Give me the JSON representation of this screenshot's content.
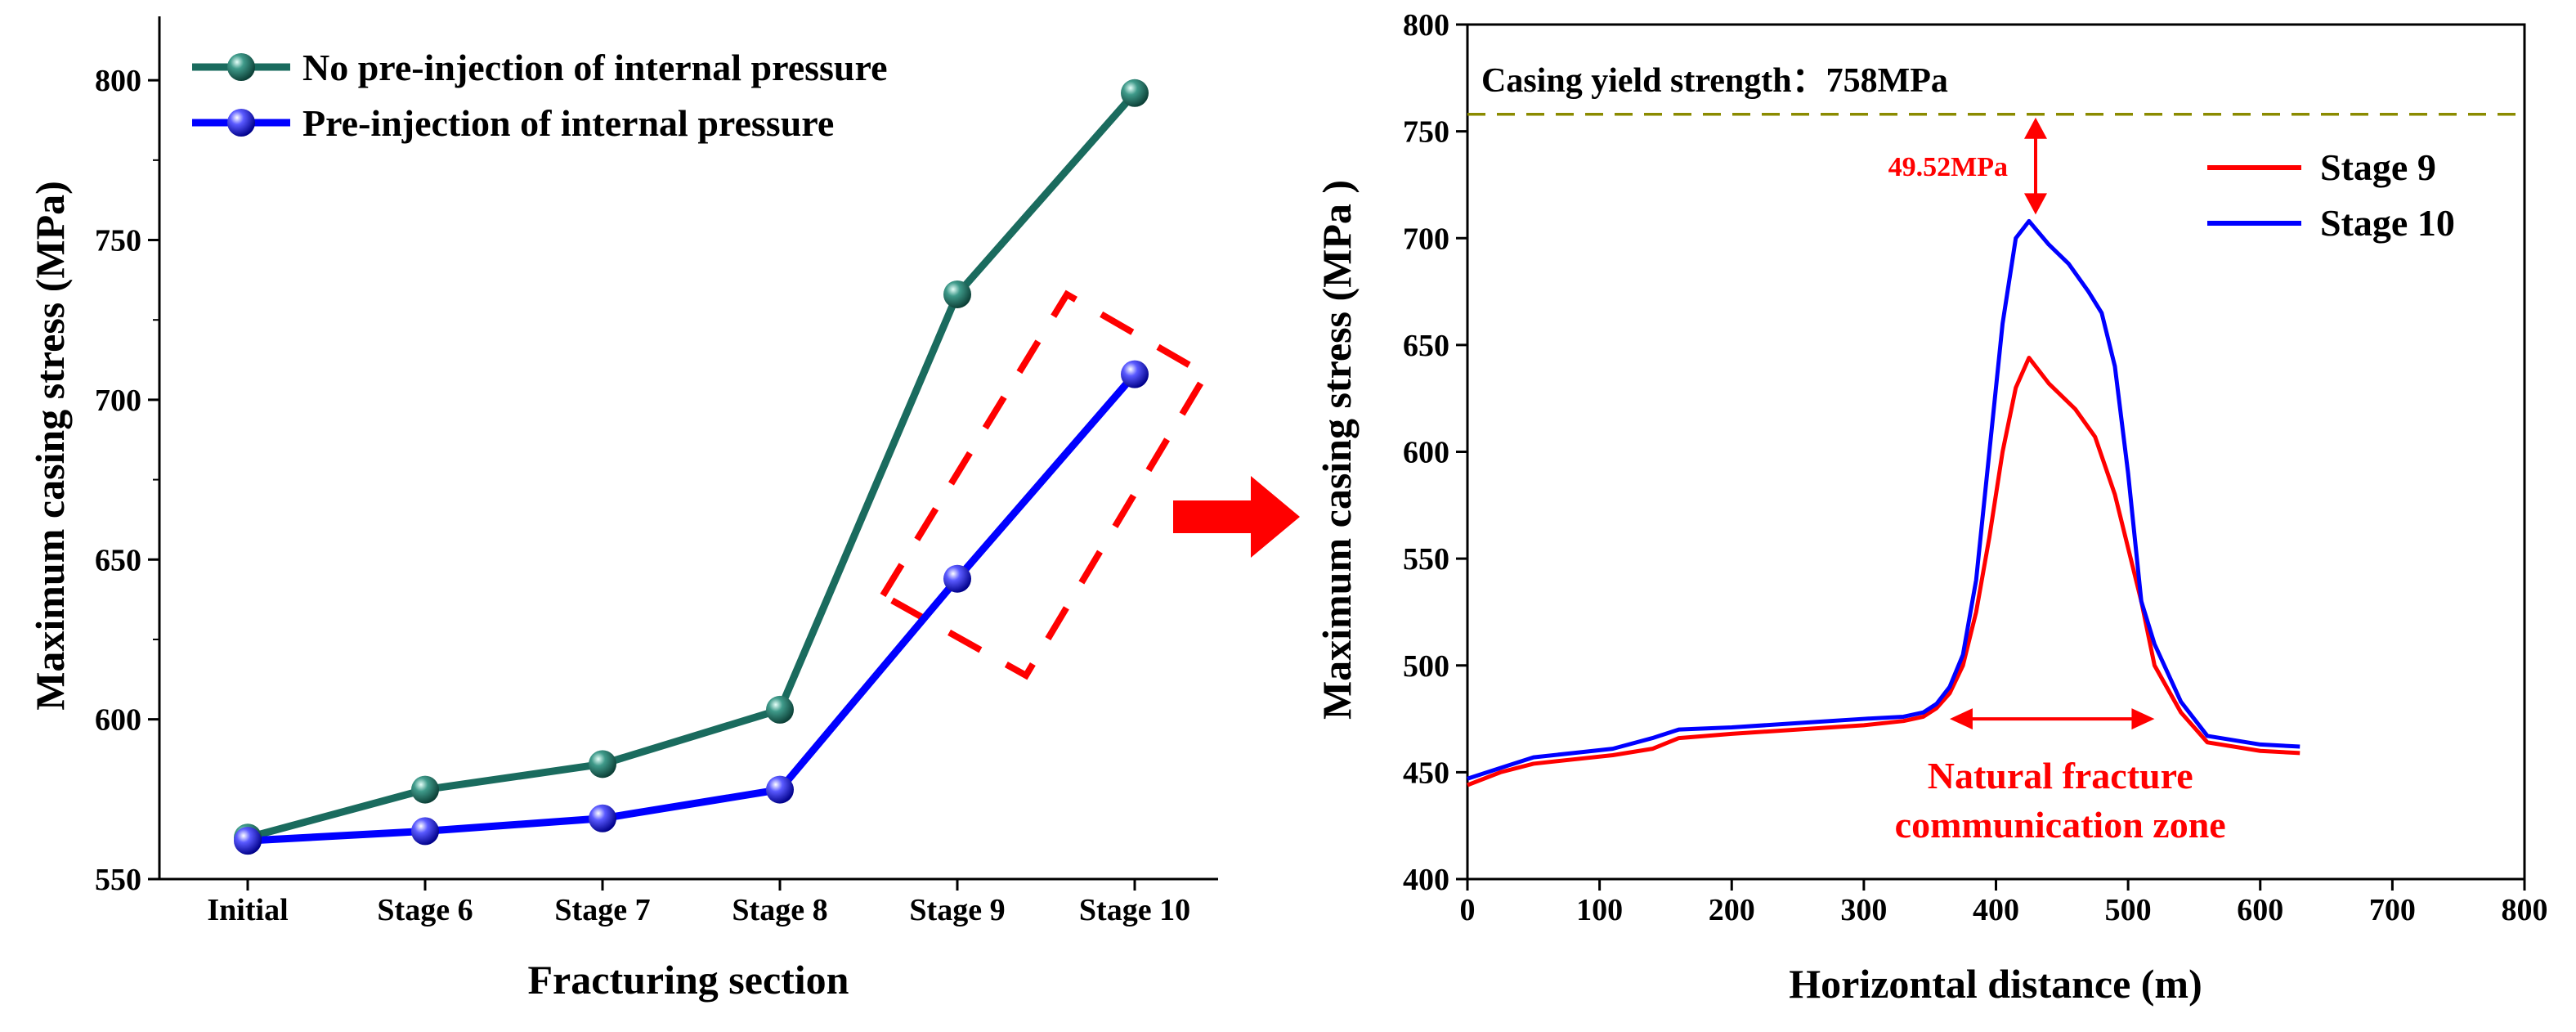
{
  "chart_data": [
    {
      "type": "line",
      "xlabel": "Fracturing section",
      "ylabel": "Maximum casing stress (MPa)",
      "categories": [
        "Initial",
        "Stage 6",
        "Stage 7",
        "Stage 8",
        "Stage 9",
        "Stage 10"
      ],
      "ylim": [
        550,
        820
      ],
      "yticks": [
        550,
        600,
        650,
        700,
        750,
        800
      ],
      "series": [
        {
          "name": "No pre-injection of internal pressure",
          "color": "#1a6b5e",
          "values": [
            563,
            578,
            586,
            603,
            733,
            796
          ]
        },
        {
          "name": "Pre-injection of internal pressure",
          "color": "#0000ff",
          "values": [
            562,
            565,
            569,
            578,
            644,
            708
          ]
        }
      ],
      "legend": "top-left",
      "annotation": "dashed red box highlighting Stage 9 and Stage 10"
    },
    {
      "type": "line",
      "xlabel": "Horizontal distance (m)",
      "ylabel": "Maximum casing stress (MPa )",
      "xlim": [
        0,
        800
      ],
      "ylim": [
        400,
        800
      ],
      "xticks": [
        0,
        100,
        200,
        300,
        400,
        500,
        600,
        700,
        800
      ],
      "yticks": [
        400,
        450,
        500,
        550,
        600,
        650,
        700,
        750,
        800
      ],
      "reference_line": {
        "value": 758,
        "label": "Casing yield strength：758MPa",
        "color": "#8b8b00"
      },
      "gap_annotation": {
        "label": "49.52MPa",
        "from": 708,
        "to": 758,
        "x": 430
      },
      "zone_annotation": {
        "line1": "Natural fracture",
        "line2": "communication zone",
        "x_start": 365,
        "x_end": 520,
        "y": 475
      },
      "series": [
        {
          "name": "Stage 9",
          "color": "#ff0000",
          "x": [
            0,
            25,
            50,
            80,
            110,
            140,
            160,
            200,
            250,
            300,
            330,
            345,
            355,
            365,
            375,
            385,
            395,
            405,
            415,
            425,
            440,
            460,
            475,
            490,
            500,
            510,
            520,
            540,
            560,
            600,
            630
          ],
          "y": [
            444,
            450,
            454,
            456,
            458,
            461,
            466,
            468,
            470,
            472,
            474,
            476,
            480,
            487,
            500,
            525,
            560,
            600,
            630,
            644,
            632,
            620,
            607,
            580,
            555,
            530,
            500,
            478,
            464,
            460,
            459
          ]
        },
        {
          "name": "Stage 10",
          "color": "#0000ff",
          "x": [
            0,
            25,
            50,
            80,
            110,
            140,
            160,
            200,
            250,
            300,
            330,
            345,
            355,
            365,
            375,
            385,
            395,
            405,
            415,
            425,
            440,
            455,
            470,
            480,
            490,
            500,
            510,
            520,
            540,
            560,
            600,
            630
          ],
          "y": [
            447,
            452,
            457,
            459,
            461,
            466,
            470,
            471,
            473,
            475,
            476,
            478,
            482,
            490,
            505,
            540,
            600,
            660,
            700,
            708,
            697,
            688,
            675,
            665,
            640,
            590,
            530,
            510,
            483,
            467,
            463,
            462
          ]
        }
      ],
      "legend": "top-right"
    }
  ]
}
